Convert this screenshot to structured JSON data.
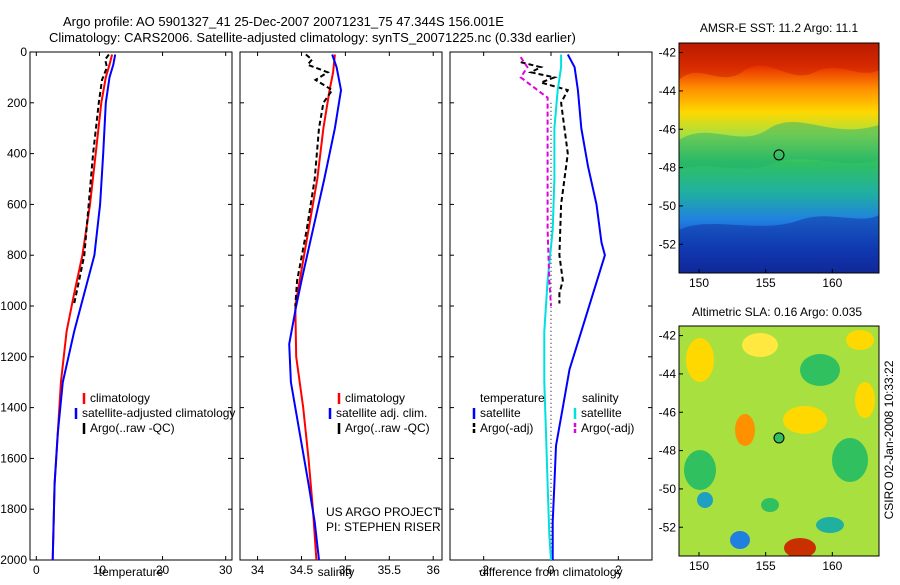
{
  "page": {
    "title_line1": "Argo profile: AO 5901327_41 25-Dec-2007 20071231_75 47.344S 156.001E",
    "title_line2": "Climatology: CARS2006. Satellite-adjusted climatology: synTS_20071225.nc (0.33d earlier)",
    "side_stamp": "CSIRO 02-Jan-2008 10:33:22",
    "project_note": [
      "US ARGO PROJECT",
      "PI: STEPHEN RISER"
    ]
  },
  "colors": {
    "climatology": "#ff0000",
    "satellite": "#0000ff",
    "argo": "#000000",
    "salinity_satellite": "#00e0e0",
    "salinity_argo": "#e000e0"
  },
  "chart_data": [
    {
      "type": "line",
      "title": "",
      "xlabel": "temperature",
      "ylabel": "",
      "xlim": [
        -1,
        31
      ],
      "ylim": [
        2000,
        0
      ],
      "xticks": [
        0,
        10,
        20,
        30
      ],
      "yticks": [
        0,
        200,
        400,
        600,
        800,
        1000,
        1200,
        1400,
        1600,
        1800,
        2000
      ],
      "legend": [
        "climatology",
        "satellite-adjusted climatology",
        "Argo(..raw -QC)"
      ],
      "series": [
        {
          "name": "climatology",
          "color": "#ff0000",
          "dash": "",
          "points": [
            [
              12.0,
              10
            ],
            [
              11.6,
              50
            ],
            [
              11.0,
              100
            ],
            [
              10.3,
              200
            ],
            [
              9.4,
              400
            ],
            [
              8.5,
              600
            ],
            [
              7.3,
              800
            ],
            [
              6.0,
              950
            ],
            [
              4.8,
              1100
            ],
            [
              3.9,
              1300
            ],
            [
              3.4,
              1500
            ],
            [
              2.9,
              1700
            ],
            [
              2.6,
              2000
            ]
          ]
        },
        {
          "name": "satellite-adjusted climatology",
          "color": "#0000ff",
          "dash": "",
          "points": [
            [
              12.5,
              10
            ],
            [
              12.2,
              50
            ],
            [
              11.6,
              100
            ],
            [
              11.0,
              200
            ],
            [
              10.6,
              400
            ],
            [
              10.1,
              600
            ],
            [
              9.2,
              800
            ],
            [
              7.6,
              950
            ],
            [
              6.0,
              1100
            ],
            [
              4.2,
              1300
            ],
            [
              3.4,
              1500
            ],
            [
              2.9,
              1700
            ],
            [
              2.6,
              2000
            ]
          ]
        },
        {
          "name": "Argo(..raw -QC)",
          "color": "#000000",
          "dash": "5,3",
          "points": [
            [
              11.5,
              10
            ],
            [
              10.9,
              30
            ],
            [
              11.2,
              60
            ],
            [
              10.4,
              110
            ],
            [
              9.9,
              200
            ],
            [
              9.0,
              400
            ],
            [
              8.3,
              600
            ],
            [
              7.6,
              800
            ],
            [
              6.6,
              920
            ],
            [
              6.0,
              990
            ]
          ]
        }
      ]
    },
    {
      "type": "line",
      "title": "",
      "xlabel": "salinity",
      "ylabel": "",
      "xlim": [
        33.8,
        36.1
      ],
      "ylim": [
        2000,
        0
      ],
      "xticks": [
        34,
        34.5,
        35,
        35.5,
        36
      ],
      "legend": [
        "climatology",
        "satellite adj. clim.",
        "Argo(..raw -QC)"
      ],
      "series": [
        {
          "name": "climatology",
          "color": "#ff0000",
          "dash": "",
          "points": [
            [
              34.88,
              10
            ],
            [
              34.86,
              80
            ],
            [
              34.82,
              150
            ],
            [
              34.75,
              300
            ],
            [
              34.68,
              500
            ],
            [
              34.58,
              700
            ],
            [
              34.48,
              900
            ],
            [
              34.43,
              1000
            ],
            [
              34.44,
              1200
            ],
            [
              34.52,
              1400
            ],
            [
              34.58,
              1600
            ],
            [
              34.63,
              1800
            ],
            [
              34.67,
              2000
            ]
          ]
        },
        {
          "name": "satellite adj. clim.",
          "color": "#0000ff",
          "dash": "",
          "points": [
            [
              34.85,
              10
            ],
            [
              34.9,
              60
            ],
            [
              34.95,
              150
            ],
            [
              34.88,
              300
            ],
            [
              34.76,
              500
            ],
            [
              34.63,
              700
            ],
            [
              34.5,
              900
            ],
            [
              34.44,
              1000
            ],
            [
              34.36,
              1150
            ],
            [
              34.38,
              1300
            ],
            [
              34.48,
              1500
            ],
            [
              34.58,
              1700
            ],
            [
              34.65,
              1850
            ],
            [
              34.7,
              2000
            ]
          ]
        },
        {
          "name": "Argo(..raw -QC)",
          "color": "#000000",
          "dash": "5,3",
          "points": [
            [
              34.55,
              10
            ],
            [
              34.62,
              30
            ],
            [
              34.57,
              50
            ],
            [
              34.8,
              80
            ],
            [
              34.66,
              110
            ],
            [
              34.85,
              150
            ],
            [
              34.75,
              200
            ],
            [
              34.7,
              300
            ],
            [
              34.65,
              500
            ],
            [
              34.56,
              700
            ],
            [
              34.45,
              900
            ],
            [
              34.43,
              1000
            ]
          ]
        }
      ]
    },
    {
      "type": "line",
      "title": "",
      "xlabel": "difference from climatology",
      "ylabel": "",
      "xlim": [
        -3,
        3
      ],
      "ylim": [
        2000,
        0
      ],
      "xticks": [
        -2,
        0,
        2
      ],
      "legend": [
        "temperature",
        "satellite",
        "Argo(-adj)",
        "salinity",
        "satellite",
        "Argo(-adj)"
      ],
      "legend_groups": [
        {
          "heading": "temperature",
          "entries": [
            "satellite",
            "Argo(-adj)"
          ]
        },
        {
          "heading": "salinity",
          "entries": [
            "satellite",
            "Argo(-adj)"
          ]
        }
      ],
      "series": [
        {
          "name": "temperature satellite",
          "color": "#0000ff",
          "dash": "",
          "points": [
            [
              0.5,
              10
            ],
            [
              0.7,
              60
            ],
            [
              0.8,
              150
            ],
            [
              0.9,
              300
            ],
            [
              1.1,
              450
            ],
            [
              1.35,
              600
            ],
            [
              1.5,
              750
            ],
            [
              1.6,
              800
            ],
            [
              1.25,
              950
            ],
            [
              0.9,
              1100
            ],
            [
              0.55,
              1250
            ],
            [
              0.35,
              1400
            ],
            [
              0.15,
              1550
            ],
            [
              0.1,
              1700
            ],
            [
              0.05,
              1850
            ],
            [
              0.05,
              2000
            ]
          ]
        },
        {
          "name": "temperature Argo(-adj)",
          "color": "#000000",
          "dash": "5,3",
          "points": [
            [
              -0.9,
              40
            ],
            [
              -0.3,
              60
            ],
            [
              -0.6,
              80
            ],
            [
              0.1,
              100
            ],
            [
              -0.3,
              120
            ],
            [
              0.5,
              150
            ],
            [
              0.3,
              200
            ],
            [
              0.5,
              400
            ],
            [
              0.3,
              600
            ],
            [
              0.25,
              800
            ],
            [
              0.35,
              900
            ],
            [
              0.25,
              950
            ],
            [
              0.25,
              990
            ]
          ]
        },
        {
          "name": "salinity satellite",
          "color": "#00e0e0",
          "dash": "",
          "points": [
            [
              0.3,
              10
            ],
            [
              0.3,
              60
            ],
            [
              0.2,
              150
            ],
            [
              0.1,
              300
            ],
            [
              0.1,
              500
            ],
            [
              0.05,
              700
            ],
            [
              -0.1,
              900
            ],
            [
              -0.2,
              1100
            ],
            [
              -0.2,
              1300
            ],
            [
              -0.15,
              1500
            ],
            [
              -0.1,
              1700
            ],
            [
              -0.05,
              1900
            ],
            [
              0,
              2000
            ]
          ]
        },
        {
          "name": "salinity Argo(-adj)",
          "color": "#e000e0",
          "dash": "5,3",
          "points": [
            [
              -0.9,
              20
            ],
            [
              -0.7,
              60
            ],
            [
              -0.9,
              100
            ],
            [
              -0.5,
              140
            ],
            [
              -0.1,
              180
            ],
            [
              -0.1,
              300
            ],
            [
              -0.1,
              500
            ],
            [
              -0.1,
              700
            ],
            [
              -0.05,
              900
            ],
            [
              0,
              1000
            ]
          ]
        }
      ],
      "reference_line": {
        "x": 0,
        "style": "dotted"
      }
    },
    {
      "type": "heatmap",
      "title": "AMSR-E SST: 11.2 Argo: 11.1",
      "xlim": [
        148.5,
        163.5
      ],
      "ylim": [
        -53.5,
        -41.5
      ],
      "xticks": [
        150,
        155,
        160
      ],
      "yticks": [
        -42,
        -44,
        -46,
        -48,
        -50,
        -52
      ],
      "marker": {
        "lon": 156.0,
        "lat": -47.34
      }
    },
    {
      "type": "heatmap",
      "title": "Altimetric SLA: 0.16 Argo: 0.035",
      "xlim": [
        148.5,
        163.5
      ],
      "ylim": [
        -53.5,
        -41.5
      ],
      "xticks": [
        150,
        155,
        160
      ],
      "yticks": [
        -42,
        -44,
        -46,
        -48,
        -50,
        -52
      ],
      "marker": {
        "lon": 156.0,
        "lat": -47.34
      }
    }
  ]
}
